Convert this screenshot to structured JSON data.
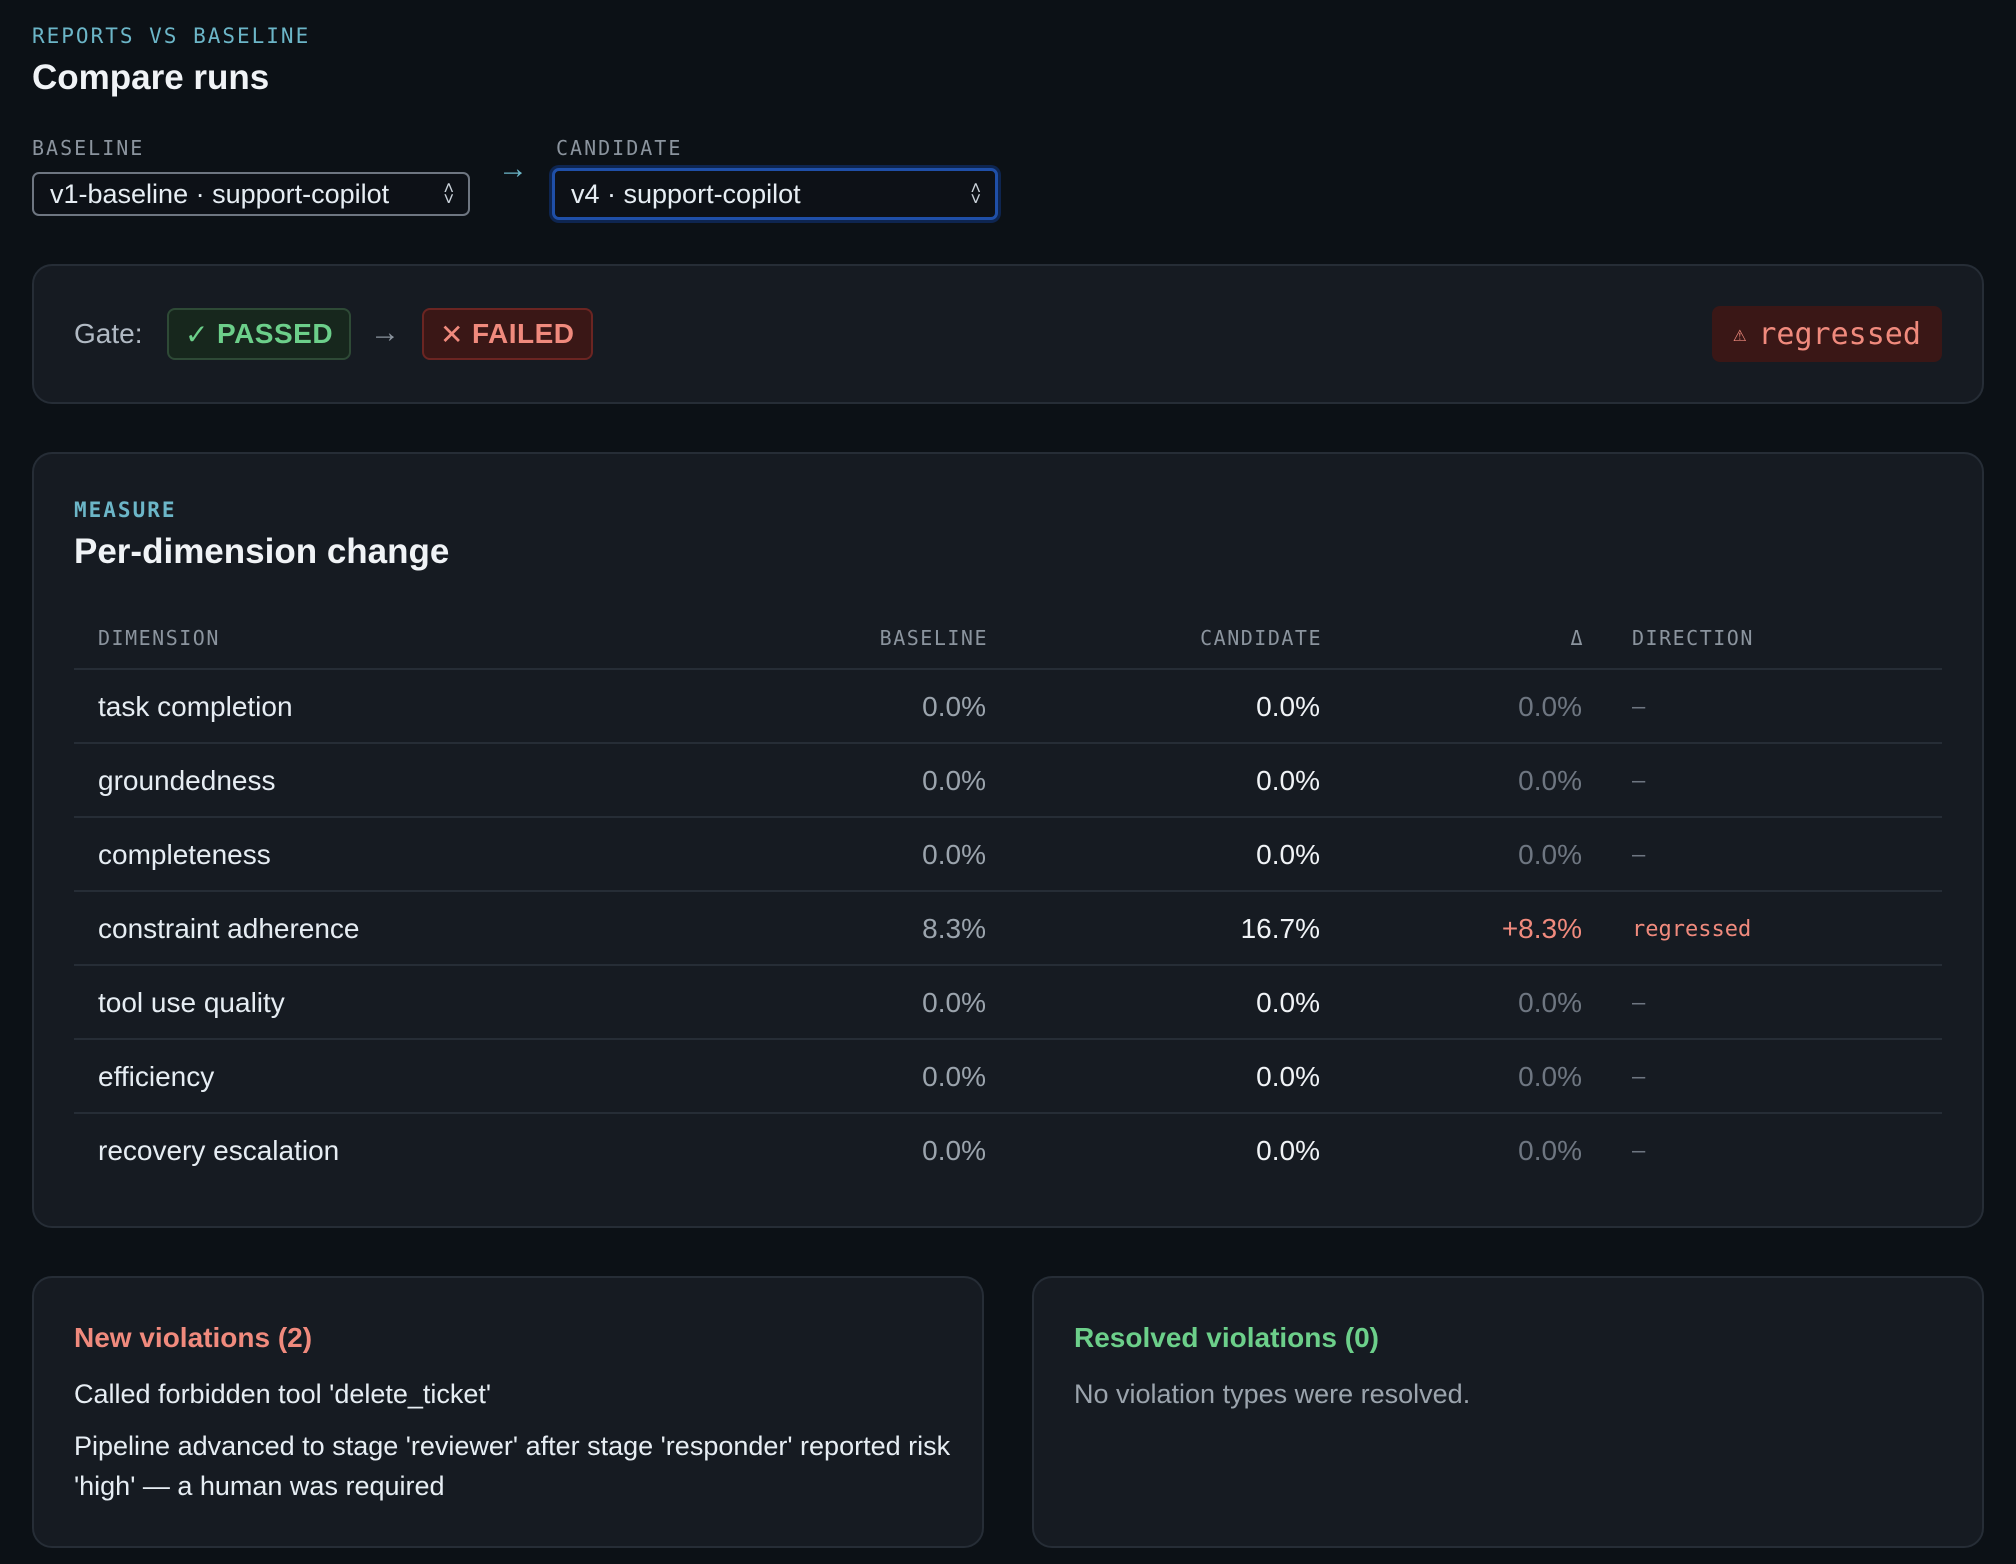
{
  "header": {
    "eyebrow": "REPORTS VS BASELINE",
    "title": "Compare runs"
  },
  "selectors": {
    "baseline_label": "BASELINE",
    "baseline_value": "v1-baseline · support-copilot",
    "candidate_label": "CANDIDATE",
    "candidate_value": "v4 · support-copilot"
  },
  "gate": {
    "label": "Gate:",
    "from_status": "PASSED",
    "to_status": "FAILED",
    "overall": "regressed"
  },
  "measure": {
    "eyebrow": "MEASURE",
    "title": "Per-dimension change",
    "columns": [
      "DIMENSION",
      "BASELINE",
      "CANDIDATE",
      "Δ",
      "DIRECTION"
    ],
    "rows": [
      {
        "dimension": "task completion",
        "baseline": "0.0%",
        "candidate": "0.0%",
        "delta": "0.0%",
        "direction": "–"
      },
      {
        "dimension": "groundedness",
        "baseline": "0.0%",
        "candidate": "0.0%",
        "delta": "0.0%",
        "direction": "–"
      },
      {
        "dimension": "completeness",
        "baseline": "0.0%",
        "candidate": "0.0%",
        "delta": "0.0%",
        "direction": "–"
      },
      {
        "dimension": "constraint adherence",
        "baseline": "8.3%",
        "candidate": "16.7%",
        "delta": "+8.3%",
        "direction": "regressed"
      },
      {
        "dimension": "tool use quality",
        "baseline": "0.0%",
        "candidate": "0.0%",
        "delta": "0.0%",
        "direction": "–"
      },
      {
        "dimension": "efficiency",
        "baseline": "0.0%",
        "candidate": "0.0%",
        "delta": "0.0%",
        "direction": "–"
      },
      {
        "dimension": "recovery escalation",
        "baseline": "0.0%",
        "candidate": "0.0%",
        "delta": "0.0%",
        "direction": "–"
      }
    ]
  },
  "new_violations": {
    "title": "New violations (2)",
    "items": [
      "Called forbidden tool 'delete_ticket'",
      "Pipeline advanced to stage 'reviewer' after stage 'responder' reported risk 'high' — a human was required"
    ]
  },
  "resolved_violations": {
    "title": "Resolved violations (0)",
    "empty_text": "No violation types were resolved."
  },
  "colors": {
    "background": "#0c1116",
    "card": "#161b22",
    "accent": "#6cb6c8",
    "pass": "#6ccf8a",
    "fail": "#f08a7d"
  }
}
